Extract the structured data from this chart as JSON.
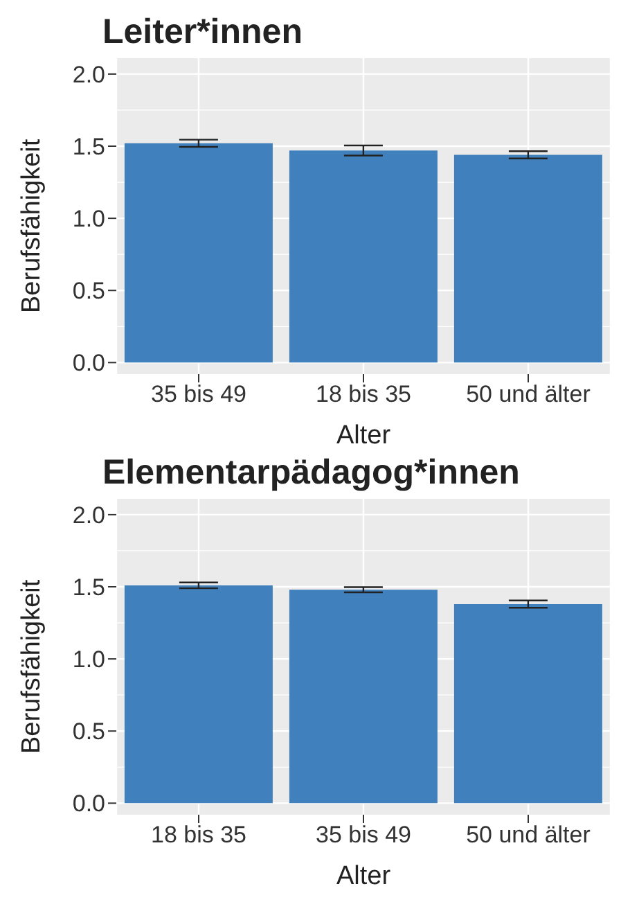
{
  "chart_data": [
    {
      "type": "bar",
      "title": "Leiter*innen",
      "xlabel": "Alter",
      "ylabel": "Berufsfähigkeit",
      "categories": [
        "35 bis 49",
        "18 bis 35",
        "50 und älter"
      ],
      "values": [
        1.52,
        1.47,
        1.44
      ],
      "errors": [
        0.025,
        0.035,
        0.025
      ],
      "color": "#4080bd",
      "ylim": [
        -0.08,
        2.11
      ],
      "yticks": [
        {
          "value": 0,
          "label": "0.0"
        },
        {
          "value": 0.5,
          "label": "0.5"
        },
        {
          "value": 1,
          "label": "1.0"
        },
        {
          "value": 1.5,
          "label": "1.5"
        },
        {
          "value": 2,
          "label": "2.0"
        }
      ],
      "grid": true
    },
    {
      "type": "bar",
      "title": "Elementarpädagog*innen",
      "xlabel": "Alter",
      "ylabel": "Berufsfähigkeit",
      "categories": [
        "18 bis 35",
        "35 bis 49",
        "50 und älter"
      ],
      "values": [
        1.51,
        1.48,
        1.38
      ],
      "errors": [
        0.02,
        0.018,
        0.025
      ],
      "color": "#4080bd",
      "ylim": [
        -0.08,
        2.11
      ],
      "yticks": [
        {
          "value": 0,
          "label": "0.0"
        },
        {
          "value": 0.5,
          "label": "0.5"
        },
        {
          "value": 1,
          "label": "1.0"
        },
        {
          "value": 1.5,
          "label": "1.5"
        },
        {
          "value": 2,
          "label": "2.0"
        }
      ],
      "grid": true
    }
  ]
}
